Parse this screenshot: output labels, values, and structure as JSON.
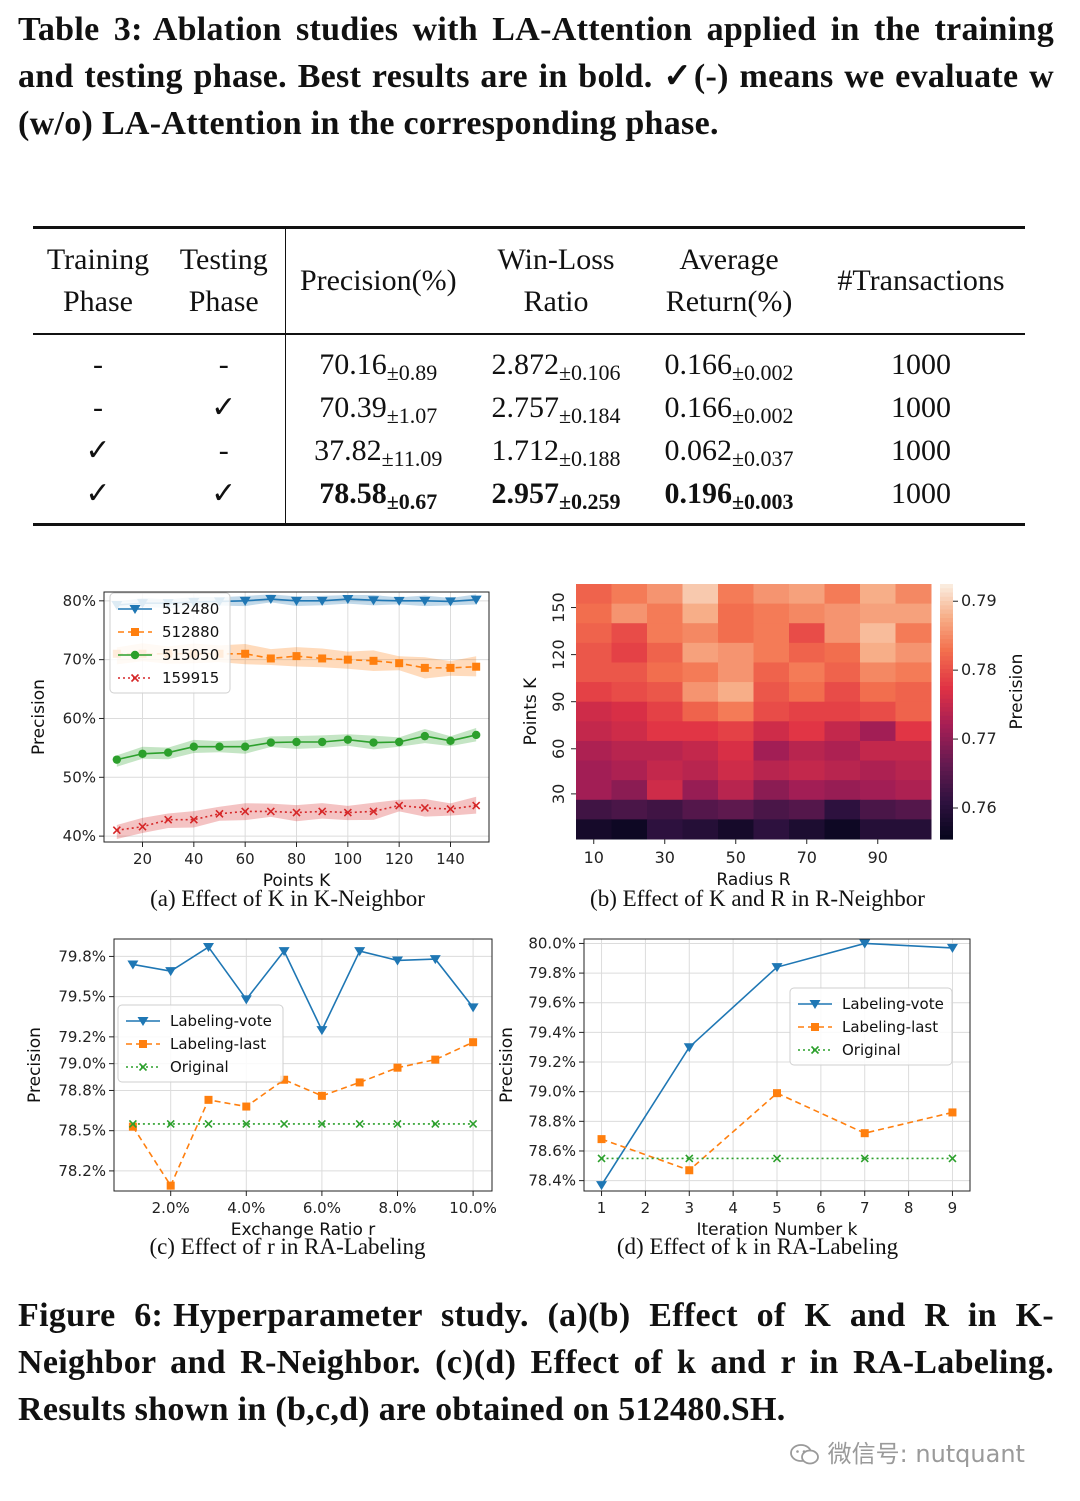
{
  "table": {
    "label": "Table 3:",
    "caption": "Ablation studies with LA-Attention applied in the training and testing phase. Best results are in bold. ✓(-) means we evaluate w (w/o) LA-Attention in the corresponding phase.",
    "headers": {
      "training_1": "Training",
      "training_2": "Phase",
      "testing_1": "Testing",
      "testing_2": "Phase",
      "precision": "Precision(%)",
      "winloss_1": "Win-Loss",
      "winloss_2": "Ratio",
      "avgret_1": "Average",
      "avgret_2": "Return(%)",
      "transactions": "#Transactions"
    },
    "rows": [
      {
        "train": "-",
        "test": "-",
        "prec": "70.16",
        "prec_sd": "±0.89",
        "wl": "2.872",
        "wl_sd": "±0.106",
        "ret": "0.166",
        "ret_sd": "±0.002",
        "tx": "1000"
      },
      {
        "train": "-",
        "test": "✓",
        "prec": "70.39",
        "prec_sd": "±1.07",
        "wl": "2.757",
        "wl_sd": "±0.184",
        "ret": "0.166",
        "ret_sd": "±0.002",
        "tx": "1000"
      },
      {
        "train": "✓",
        "test": "-",
        "prec": "37.82",
        "prec_sd": "±11.09",
        "wl": "1.712",
        "wl_sd": "±0.188",
        "ret": "0.062",
        "ret_sd": "±0.037",
        "tx": "1000"
      },
      {
        "train": "✓",
        "test": "✓",
        "prec": "78.58",
        "prec_sd": "±0.67",
        "wl": "2.957",
        "wl_sd": "±0.259",
        "ret": "0.196",
        "ret_sd": "±0.003",
        "tx": "1000"
      }
    ]
  },
  "figure": {
    "label": "Figure 6:",
    "caption": "Hyperparameter study. (a)(b) Effect of K and R in K-Neighbor and R-Neighbor. (c)(d) Effect of k and r in RA-Labeling. Results shown in (b,c,d) are obtained on 512480.SH.",
    "sub_a": "(a) Effect of K in K-Neighbor",
    "sub_b": "(b) Effect of K and R in R-Neighbor",
    "sub_c": "(c) Effect of r in RA-Labeling",
    "sub_d": "(d) Effect of k in RA-Labeling"
  },
  "watermark": "微信号: nutquant",
  "chart_data": [
    {
      "id": "a",
      "type": "line",
      "xlabel": "Points K",
      "ylabel": "Precision",
      "xlim": [
        5,
        155
      ],
      "ylim": [
        39,
        81.5
      ],
      "xticks": [
        20,
        40,
        60,
        80,
        100,
        120,
        140
      ],
      "yticks": [
        40,
        50,
        60,
        70,
        80
      ],
      "ytick_labels": [
        "40%",
        "50%",
        "60%",
        "70%",
        "80%"
      ],
      "x": [
        10,
        20,
        30,
        40,
        50,
        60,
        70,
        80,
        90,
        100,
        110,
        120,
        130,
        140,
        150
      ],
      "series": [
        {
          "name": "512480",
          "color": "#1f77b4",
          "marker": "tri",
          "style": "solid",
          "values": [
            79.3,
            79.6,
            79.6,
            79.8,
            79.9,
            80.0,
            80.3,
            80.0,
            80.0,
            80.3,
            80.1,
            80.0,
            80.0,
            79.9,
            80.2
          ],
          "band": 0.9
        },
        {
          "name": "512880",
          "color": "#ff7f0e",
          "marker": "square",
          "style": "dashed",
          "values": [
            71.0,
            71.0,
            71.0,
            71.0,
            71.0,
            71.0,
            70.2,
            70.6,
            70.2,
            70.0,
            69.8,
            69.4,
            68.6,
            68.6,
            68.8
          ],
          "band": 1.8
        },
        {
          "name": "515050",
          "color": "#2ca02c",
          "marker": "circle",
          "style": "solid",
          "values": [
            53.0,
            54.0,
            54.2,
            55.2,
            55.2,
            55.2,
            55.9,
            56.0,
            56.0,
            56.4,
            55.9,
            56.0,
            57.0,
            56.2,
            57.2
          ],
          "band": 1.2
        },
        {
          "name": "159915",
          "color": "#d62728",
          "marker": "x",
          "style": "dotted",
          "values": [
            41.0,
            41.6,
            42.8,
            42.8,
            43.8,
            44.2,
            44.2,
            44.0,
            44.2,
            44.0,
            44.2,
            45.2,
            44.8,
            44.6,
            45.2
          ],
          "band": 1.5
        }
      ]
    },
    {
      "id": "b",
      "type": "heatmap",
      "xlabel": "Radius R",
      "ylabel": "Points K",
      "colorbar_label": "Precision",
      "xticks": [
        "10",
        "30",
        "50",
        "70",
        "90"
      ],
      "yticks": [
        "30",
        "60",
        "90",
        "120",
        "150"
      ],
      "colorbar_ticks": [
        "0.79",
        "0.78",
        "0.77",
        "0.76"
      ],
      "vmin": 0.7555,
      "vmax": 0.7925,
      "rows_top_to_bottom": [
        [
          0.782,
          0.784,
          0.786,
          0.79,
          0.784,
          0.786,
          0.787,
          0.784,
          0.788,
          0.785
        ],
        [
          0.783,
          0.786,
          0.784,
          0.788,
          0.783,
          0.784,
          0.785,
          0.786,
          0.787,
          0.787
        ],
        [
          0.782,
          0.78,
          0.784,
          0.785,
          0.783,
          0.784,
          0.78,
          0.786,
          0.789,
          0.784
        ],
        [
          0.781,
          0.779,
          0.782,
          0.787,
          0.786,
          0.784,
          0.782,
          0.783,
          0.788,
          0.786
        ],
        [
          0.781,
          0.781,
          0.783,
          0.784,
          0.786,
          0.782,
          0.784,
          0.782,
          0.785,
          0.784
        ],
        [
          0.779,
          0.78,
          0.781,
          0.786,
          0.788,
          0.781,
          0.783,
          0.78,
          0.783,
          0.782
        ],
        [
          0.776,
          0.777,
          0.779,
          0.782,
          0.784,
          0.78,
          0.779,
          0.779,
          0.78,
          0.782
        ],
        [
          0.775,
          0.776,
          0.778,
          0.778,
          0.779,
          0.776,
          0.778,
          0.775,
          0.772,
          0.778
        ],
        [
          0.773,
          0.774,
          0.774,
          0.775,
          0.777,
          0.772,
          0.774,
          0.773,
          0.775,
          0.775
        ],
        [
          0.772,
          0.773,
          0.775,
          0.774,
          0.776,
          0.774,
          0.775,
          0.774,
          0.773,
          0.774
        ],
        [
          0.772,
          0.77,
          0.776,
          0.771,
          0.774,
          0.77,
          0.772,
          0.771,
          0.772,
          0.773
        ],
        [
          0.763,
          0.764,
          0.763,
          0.765,
          0.766,
          0.764,
          0.765,
          0.761,
          0.764,
          0.765
        ],
        [
          0.758,
          0.757,
          0.761,
          0.76,
          0.758,
          0.761,
          0.759,
          0.757,
          0.76,
          0.76
        ]
      ]
    },
    {
      "id": "c",
      "type": "line",
      "xlabel": "Exchange Ratio r",
      "ylabel": "Precision",
      "xlim": [
        0.5,
        10.5
      ],
      "ylim": [
        78.05,
        79.93
      ],
      "xticks": [
        2,
        4,
        6,
        8,
        10
      ],
      "xtick_labels": [
        "2.0%",
        "4.0%",
        "6.0%",
        "8.0%",
        "10.0%"
      ],
      "yticks": [
        78.2,
        78.5,
        78.8,
        79.0,
        79.2,
        79.5,
        79.8
      ],
      "ytick_labels": [
        "78.2%",
        "78.5%",
        "78.8%",
        "79.0%",
        "79.2%",
        "79.5%",
        "79.8%"
      ],
      "x": [
        1,
        2,
        3,
        4,
        5,
        6,
        7,
        8,
        9,
        10
      ],
      "series": [
        {
          "name": "Labeling-vote",
          "color": "#1f77b4",
          "marker": "tri",
          "style": "solid",
          "values": [
            79.74,
            79.69,
            79.87,
            79.48,
            79.84,
            79.25,
            79.84,
            79.77,
            79.78,
            79.42
          ]
        },
        {
          "name": "Labeling-last",
          "color": "#ff7f0e",
          "marker": "square",
          "style": "dashed",
          "values": [
            78.53,
            78.09,
            78.73,
            78.68,
            78.88,
            78.76,
            78.86,
            78.97,
            79.03,
            79.16
          ]
        },
        {
          "name": "Original",
          "color": "#2ca02c",
          "marker": "x",
          "style": "dotted",
          "values": [
            78.55,
            78.55,
            78.55,
            78.55,
            78.55,
            78.55,
            78.55,
            78.55,
            78.55,
            78.55
          ]
        }
      ]
    },
    {
      "id": "d",
      "type": "line",
      "xlabel": "Iteration Number k",
      "ylabel": "Precision",
      "xlim": [
        0.6,
        9.4
      ],
      "ylim": [
        78.33,
        80.03
      ],
      "xticks": [
        1,
        2,
        3,
        4,
        5,
        6,
        7,
        8,
        9
      ],
      "xtick_labels": [
        "1",
        "2",
        "3",
        "4",
        "5",
        "6",
        "7",
        "8",
        "9"
      ],
      "yticks": [
        78.4,
        78.6,
        78.8,
        79.0,
        79.2,
        79.4,
        79.6,
        79.8,
        80.0
      ],
      "ytick_labels": [
        "78.4%",
        "78.6%",
        "78.8%",
        "79.0%",
        "79.2%",
        "79.4%",
        "79.6%",
        "79.8%",
        "80.0%"
      ],
      "x": [
        1,
        3,
        5,
        7,
        9
      ],
      "series": [
        {
          "name": "Labeling-vote",
          "color": "#1f77b4",
          "marker": "tri",
          "style": "solid",
          "values": [
            78.37,
            79.3,
            79.84,
            80.0,
            79.97
          ]
        },
        {
          "name": "Labeling-last",
          "color": "#ff7f0e",
          "marker": "square",
          "style": "dashed",
          "values": [
            78.68,
            78.47,
            78.99,
            78.72,
            78.86
          ]
        },
        {
          "name": "Original",
          "color": "#2ca02c",
          "marker": "x",
          "style": "dotted",
          "values": [
            78.55,
            78.55,
            78.55,
            78.55,
            78.55
          ]
        }
      ]
    }
  ]
}
